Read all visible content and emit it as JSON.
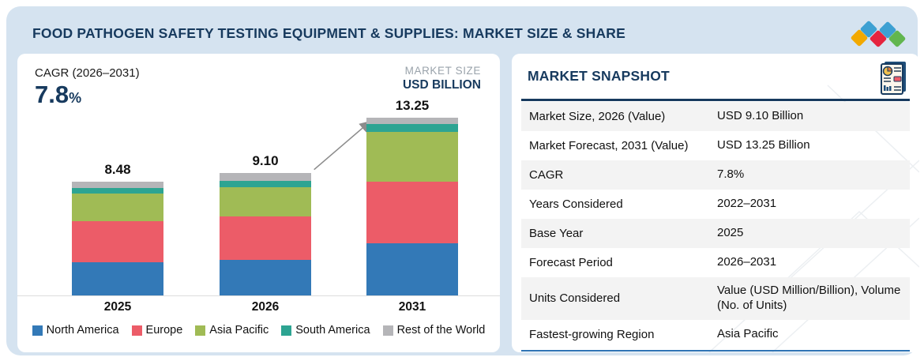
{
  "header": {
    "title": "FOOD PATHOGEN SAFETY TESTING EQUIPMENT & SUPPLIES: MARKET SIZE & SHARE",
    "logo_diamond_colors": [
      "#f2a900",
      "#3da0d2",
      "#e5243f",
      "#3da0d2",
      "#62b64f"
    ]
  },
  "chart": {
    "cagr_label": "CAGR (2026–2031)",
    "cagr_value": "7.8",
    "cagr_unit": "%",
    "market_size_label": "MARKET SIZE",
    "market_size_unit": "USD BILLION"
  },
  "chart_data": {
    "type": "bar",
    "stacked": true,
    "title": "FOOD PATHOGEN SAFETY TESTING EQUIPMENT & SUPPLIES: MARKET SIZE & SHARE",
    "ylabel": "USD BILLION",
    "grid": false,
    "legend_position": "bottom",
    "categories": [
      "2025",
      "2026",
      "2031"
    ],
    "totals": [
      8.48,
      9.1,
      13.25
    ],
    "total_labels": [
      "8.48",
      "9.10",
      "13.25"
    ],
    "series": [
      {
        "name": "North America",
        "color": "#3379b7",
        "values": [
          2.47,
          2.64,
          3.9
        ]
      },
      {
        "name": "Europe",
        "color": "#ec5c68",
        "values": [
          3.06,
          3.23,
          4.55
        ]
      },
      {
        "name": "Asia Pacific",
        "color": "#a0bb55",
        "values": [
          2.06,
          2.17,
          3.72
        ]
      },
      {
        "name": "South America",
        "color": "#2da492",
        "values": [
          0.41,
          0.47,
          0.59
        ]
      },
      {
        "name": "Rest of the World",
        "color": "#b5b5b8",
        "values": [
          0.48,
          0.59,
          0.49
        ]
      }
    ],
    "annotation": "growth arrow from 2026 bar top to 2031 bar top"
  },
  "snapshot": {
    "title": "MARKET SNAPSHOT",
    "rows": [
      {
        "label": "Market Size, 2026 (Value)",
        "value": "USD 9.10 Billion"
      },
      {
        "label": "Market Forecast, 2031 (Value)",
        "value": "USD 13.25 Billion"
      },
      {
        "label": "CAGR",
        "value": "7.8%"
      },
      {
        "label": "Years Considered",
        "value": "2022–2031"
      },
      {
        "label": "Base Year",
        "value": "2025"
      },
      {
        "label": "Forecast Period",
        "value": "2026–2031"
      },
      {
        "label": "Units Considered",
        "value": "Value (USD Million/Billion), Volume (No. of Units)"
      },
      {
        "label": "Fastest-growing Region",
        "value": "Asia Pacific"
      }
    ]
  },
  "colors": {
    "background_panel": "#d5e3f0",
    "card": "#ffffff",
    "navy": "#173a5e",
    "stripe": "#f3f3f3",
    "axis_line": "#dcdcdc",
    "arrow": "#8c8c8c",
    "table_bottom_rule": "#2e74b5",
    "market_size_gray": "#9aa3ab"
  }
}
